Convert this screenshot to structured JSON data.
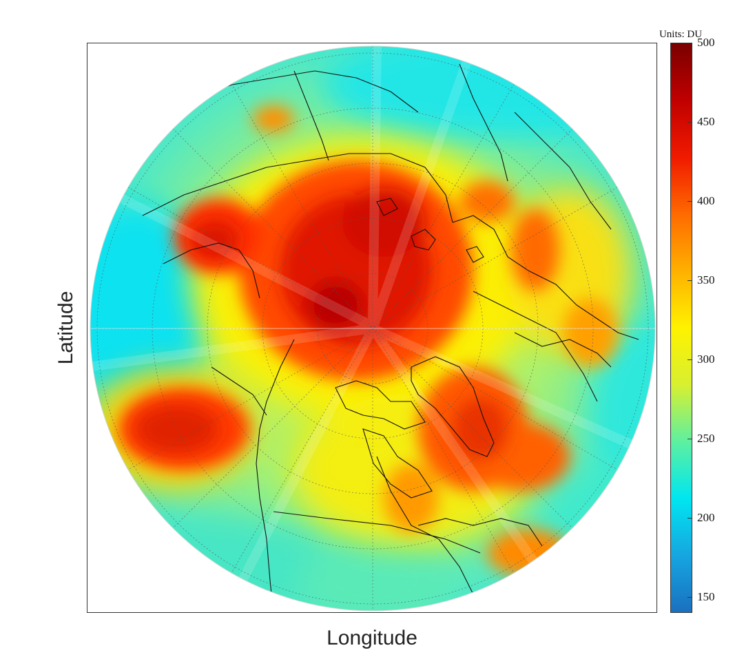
{
  "map": {
    "xlabel": "Longitude",
    "ylabel": "Latitude",
    "projection": "north-polar-stereographic"
  },
  "colorbar": {
    "title": "Units: DU",
    "min": 140,
    "max": 500,
    "ticks": [
      {
        "value": 500,
        "label": "500"
      },
      {
        "value": 450,
        "label": "450"
      },
      {
        "value": 400,
        "label": "400"
      },
      {
        "value": 350,
        "label": "350"
      },
      {
        "value": 300,
        "label": "300"
      },
      {
        "value": 250,
        "label": "250"
      },
      {
        "value": 200,
        "label": "200"
      },
      {
        "value": 150,
        "label": "150"
      }
    ],
    "colormap": [
      "#1a70c0",
      "#16a6e0",
      "#00e6f0",
      "#5ef0a0",
      "#d8f030",
      "#fff200",
      "#ffb000",
      "#ff6a00",
      "#f01a00",
      "#c00000",
      "#7a0000"
    ]
  },
  "legend_position": "right",
  "grid": true
}
